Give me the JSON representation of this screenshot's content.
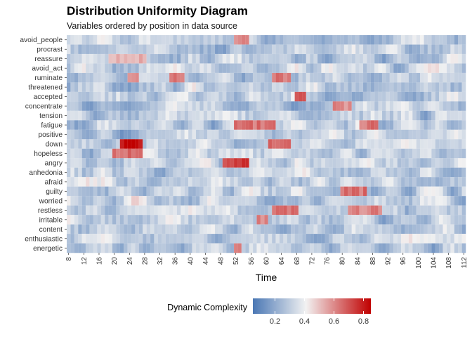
{
  "chart_data": {
    "type": "heatmap",
    "title": "Distribution Uniformity Diagram",
    "subtitle": "Variables ordered by position in data source",
    "xlabel": "Time",
    "ylabel": "",
    "x_start": 8,
    "x_end": 112,
    "x_tick_labels": [
      "8",
      "12",
      "16",
      "20",
      "24",
      "28",
      "32",
      "36",
      "40",
      "44",
      "48",
      "52",
      "56",
      "60",
      "64",
      "68",
      "72",
      "76",
      "80",
      "84",
      "88",
      "92",
      "96",
      "100",
      "104",
      "108",
      "112"
    ],
    "variables": [
      "avoid_people",
      "procrast",
      "reassure",
      "avoid_act",
      "ruminate",
      "threatened",
      "accepted",
      "concentrate",
      "tension",
      "fatigue",
      "positive",
      "down",
      "hopeless",
      "angry",
      "anhedonia",
      "afraid",
      "guilty",
      "worried",
      "restless",
      "irritable",
      "content",
      "enthusiastic",
      "energetic"
    ],
    "value_range": [
      0.05,
      0.85
    ],
    "legend": {
      "title": "Dynamic Complexity",
      "ticks": [
        "0.2",
        "0.4",
        "0.6",
        "0.8"
      ],
      "position": "bottom"
    },
    "colors": {
      "low": "#4a77b4",
      "mid": "#f2f2f2",
      "high": "#c00000"
    },
    "hotspots": [
      {
        "var": "avoid_people",
        "t": [
          52,
          55
        ],
        "value": 0.62
      },
      {
        "var": "reassure",
        "t": [
          19,
          28
        ],
        "value": 0.55
      },
      {
        "var": "ruminate",
        "t": [
          24,
          26
        ],
        "value": 0.62
      },
      {
        "var": "ruminate",
        "t": [
          35,
          38
        ],
        "value": 0.62
      },
      {
        "var": "ruminate",
        "t": [
          62,
          66
        ],
        "value": 0.65
      },
      {
        "var": "accepted",
        "t": [
          68,
          70
        ],
        "value": 0.68
      },
      {
        "var": "concentrate",
        "t": [
          78,
          82
        ],
        "value": 0.6
      },
      {
        "var": "fatigue",
        "t": [
          52,
          62
        ],
        "value": 0.65
      },
      {
        "var": "fatigue",
        "t": [
          85,
          89
        ],
        "value": 0.65
      },
      {
        "var": "down",
        "t": [
          22,
          27
        ],
        "value": 0.85
      },
      {
        "var": "down",
        "t": [
          61,
          66
        ],
        "value": 0.66
      },
      {
        "var": "hopeless",
        "t": [
          20,
          27
        ],
        "value": 0.66
      },
      {
        "var": "angry",
        "t": [
          49,
          55
        ],
        "value": 0.75
      },
      {
        "var": "guilty",
        "t": [
          80,
          86
        ],
        "value": 0.65
      },
      {
        "var": "restless",
        "t": [
          62,
          68
        ],
        "value": 0.66
      },
      {
        "var": "restless",
        "t": [
          82,
          90
        ],
        "value": 0.62
      },
      {
        "var": "irritable",
        "t": [
          58,
          60
        ],
        "value": 0.6
      },
      {
        "var": "energetic",
        "t": [
          52,
          53
        ],
        "value": 0.65
      }
    ]
  }
}
